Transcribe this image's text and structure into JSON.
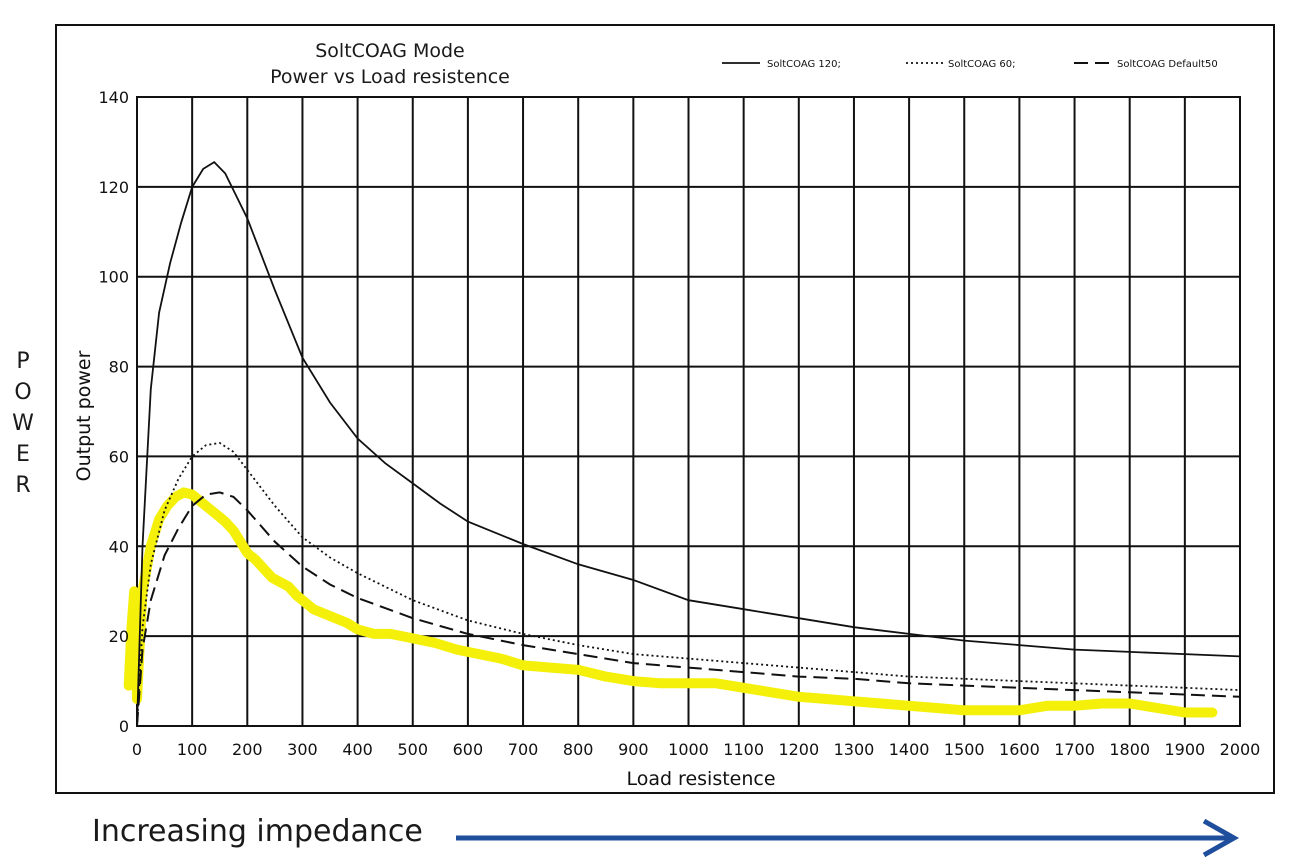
{
  "side_label": [
    "P",
    "O",
    "W",
    "E",
    "R"
  ],
  "caption": "Increasing impedance",
  "colors": {
    "highlight": "#f4f00a",
    "arrow": "#1f4e9c",
    "line": "#111111"
  },
  "chart_data": {
    "type": "line",
    "title": [
      "SoltCOAG Mode",
      "Power vs Load resistence"
    ],
    "xlabel": "Load resistence",
    "ylabel": "Output power",
    "xlim": [
      0,
      2000
    ],
    "ylim": [
      0,
      140
    ],
    "xticks": [
      0,
      100,
      200,
      300,
      400,
      500,
      600,
      700,
      800,
      900,
      1000,
      1100,
      1200,
      1300,
      1400,
      1500,
      1600,
      1700,
      1800,
      1900,
      2000
    ],
    "yticks": [
      0,
      20,
      40,
      60,
      80,
      100,
      120,
      140
    ],
    "grid": true,
    "legend_position": "top-right",
    "series": [
      {
        "name": "SoltCOAG 120;",
        "style": "solid",
        "x": [
          0,
          10,
          25,
          40,
          60,
          80,
          100,
          120,
          140,
          160,
          200,
          250,
          300,
          350,
          400,
          450,
          500,
          550,
          600,
          700,
          800,
          900,
          1000,
          1100,
          1200,
          1300,
          1400,
          1500,
          1600,
          1700,
          1800,
          1900,
          2000
        ],
        "y": [
          0,
          40,
          75,
          92,
          103,
          112,
          120,
          124,
          125.5,
          123,
          113,
          97,
          82,
          72,
          64,
          58.5,
          54,
          49.5,
          45.5,
          40.5,
          36,
          32.5,
          28,
          26,
          24,
          22,
          20.5,
          19,
          18,
          17,
          16.5,
          16,
          15.5
        ]
      },
      {
        "name": "SoltCOAG 60;",
        "style": "dotted",
        "x": [
          0,
          10,
          25,
          50,
          75,
          100,
          125,
          150,
          175,
          200,
          250,
          300,
          350,
          400,
          500,
          600,
          700,
          800,
          900,
          1000,
          1100,
          1200,
          1300,
          1400,
          1500,
          1600,
          1700,
          1800,
          1900,
          2000
        ],
        "y": [
          0,
          22,
          36,
          48,
          55,
          60,
          62.5,
          63,
          61,
          57,
          49,
          42,
          37.5,
          34,
          28,
          23.5,
          20.5,
          18,
          16,
          15,
          14,
          13,
          12,
          11,
          10.5,
          10,
          9.5,
          9,
          8.5,
          8
        ]
      },
      {
        "name": "SoltCOAG Default50",
        "style": "dashed",
        "x": [
          0,
          10,
          25,
          50,
          75,
          100,
          125,
          150,
          175,
          200,
          250,
          300,
          350,
          400,
          500,
          600,
          700,
          800,
          900,
          1000,
          1100,
          1200,
          1300,
          1400,
          1500,
          1600,
          1700,
          1800,
          1900,
          2000
        ],
        "y": [
          0,
          17,
          28,
          38,
          44,
          49,
          51.5,
          52,
          51,
          48,
          41,
          35.5,
          31.5,
          28.5,
          24,
          20.5,
          18,
          16,
          14,
          13,
          12,
          11,
          10.5,
          9.5,
          9,
          8.5,
          8,
          7.5,
          7,
          6.5
        ]
      },
      {
        "style": "highlight",
        "x": [
          -15,
          -10,
          -5,
          0,
          10,
          25,
          40,
          55,
          70,
          85,
          100,
          115,
          130,
          145,
          160,
          175,
          190,
          200,
          215,
          230,
          245,
          260,
          275,
          290,
          305,
          320,
          340,
          360,
          380,
          400,
          430,
          460,
          500,
          540,
          580,
          620,
          660,
          700,
          750,
          800,
          850,
          900,
          950,
          1000,
          1050,
          1100,
          1150,
          1200,
          1250,
          1300,
          1350,
          1400,
          1450,
          1500,
          1550,
          1600,
          1650,
          1700,
          1750,
          1800,
          1850,
          1900,
          1950
        ],
        "y": [
          9,
          22,
          30,
          6,
          30,
          40,
          46,
          49,
          51,
          52,
          51.5,
          50,
          48.5,
          47,
          45.5,
          43.5,
          40.5,
          38.5,
          37,
          35,
          33,
          32,
          31,
          29,
          27.5,
          26,
          25,
          24,
          23,
          21.5,
          20.5,
          20.5,
          19.5,
          18.5,
          17,
          16,
          15,
          13.5,
          13,
          12.5,
          11,
          10,
          9.5,
          9.5,
          9.5,
          8.5,
          7.5,
          6.5,
          6,
          5.5,
          5,
          4.5,
          4,
          3.5,
          3.5,
          3.5,
          4.5,
          4.5,
          5,
          5,
          4,
          3,
          3
        ]
      }
    ]
  }
}
